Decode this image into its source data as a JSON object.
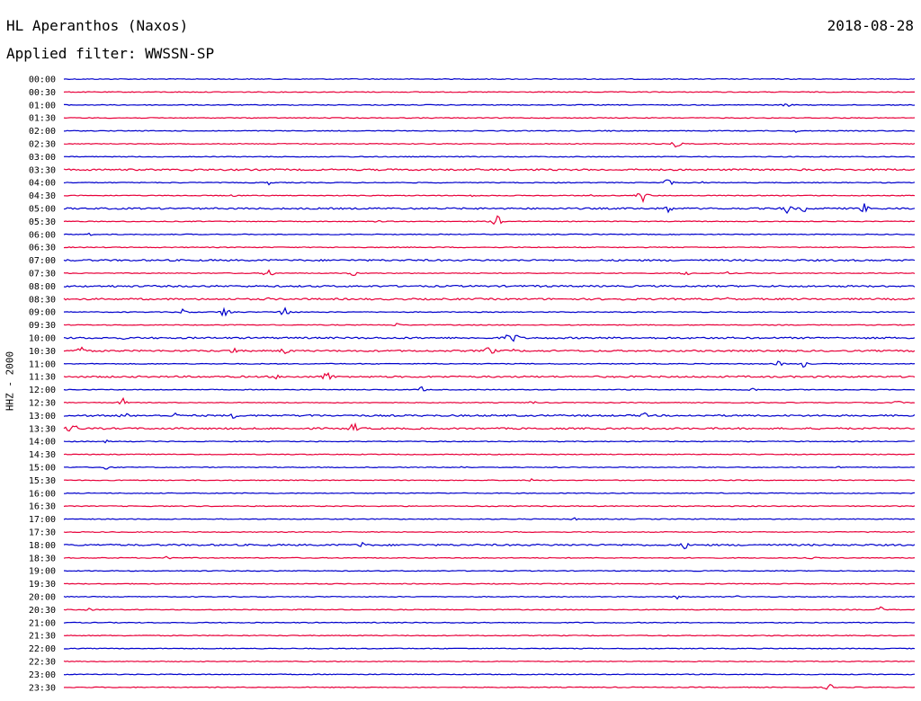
{
  "header": {
    "station": "HL Aperanthos (Naxos)",
    "date": "2018-08-28",
    "filter": "Applied filter: WWSSN-SP"
  },
  "chart_data": {
    "type": "line",
    "title": "HL Aperanthos (Naxos)",
    "ylabel": "HHZ - 2000",
    "colors": [
      "#0000cc",
      "#e8003a"
    ],
    "grid": false,
    "categories": [
      "00:00",
      "00:30",
      "01:00",
      "01:30",
      "02:00",
      "02:30",
      "03:00",
      "03:30",
      "04:00",
      "04:30",
      "05:00",
      "05:30",
      "06:00",
      "06:30",
      "07:00",
      "07:30",
      "08:00",
      "08:30",
      "09:00",
      "09:30",
      "10:00",
      "10:30",
      "11:00",
      "11:30",
      "12:00",
      "12:30",
      "13:00",
      "13:30",
      "14:00",
      "14:30",
      "15:00",
      "15:30",
      "16:00",
      "16:30",
      "17:00",
      "17:30",
      "18:00",
      "18:30",
      "19:00",
      "19:30",
      "20:00",
      "20:30",
      "21:00",
      "21:30",
      "22:00",
      "22:30",
      "23:00",
      "23:30"
    ],
    "noise": [
      1,
      1,
      1,
      1,
      1,
      1,
      1,
      2,
      1,
      1,
      2,
      1,
      1,
      1,
      2,
      1,
      2,
      2,
      1,
      1,
      2,
      2,
      1,
      2,
      1,
      1,
      2,
      2,
      1,
      1,
      1,
      1,
      1,
      1,
      1,
      1,
      2,
      1,
      1,
      1,
      1,
      1,
      1,
      1,
      1,
      1,
      1,
      1
    ],
    "events": [
      [],
      [],
      [
        [
          0.85,
          3
        ]
      ],
      [],
      [
        [
          0.64,
          1.5
        ],
        [
          0.86,
          2
        ]
      ],
      [
        [
          0.72,
          5
        ]
      ],
      [],
      [
        [
          0.15,
          2
        ],
        [
          0.97,
          2
        ]
      ],
      [
        [
          0.24,
          3
        ],
        [
          0.71,
          6
        ],
        [
          0.75,
          2
        ]
      ],
      [
        [
          0.2,
          2
        ],
        [
          0.48,
          2
        ],
        [
          0.68,
          9
        ],
        [
          0.62,
          2
        ]
      ],
      [
        [
          0.71,
          6
        ],
        [
          0.85,
          8
        ],
        [
          0.87,
          5
        ],
        [
          0.94,
          7
        ]
      ],
      [
        [
          0.37,
          2
        ],
        [
          0.51,
          9
        ]
      ],
      [
        [
          0.03,
          2
        ]
      ],
      [],
      [],
      [
        [
          0.24,
          7
        ],
        [
          0.34,
          4
        ],
        [
          0.73,
          4
        ],
        [
          0.78,
          2
        ]
      ],
      [
        [
          0.06,
          2
        ],
        [
          0.56,
          2
        ]
      ],
      [
        [
          0.24,
          2
        ],
        [
          0.66,
          3
        ],
        [
          0.78,
          2
        ]
      ],
      [
        [
          0.14,
          5
        ],
        [
          0.19,
          9
        ],
        [
          0.26,
          9
        ]
      ],
      [
        [
          0.39,
          3
        ]
      ],
      [
        [
          0.52,
          5
        ],
        [
          0.53,
          8
        ],
        [
          0.07,
          2
        ]
      ],
      [
        [
          0.02,
          7
        ],
        [
          0.2,
          6
        ],
        [
          0.26,
          6
        ],
        [
          0.5,
          9
        ],
        [
          0.53,
          3
        ]
      ],
      [
        [
          0.84,
          4
        ],
        [
          0.87,
          5
        ]
      ],
      [
        [
          0.25,
          3
        ],
        [
          0.31,
          9
        ]
      ],
      [
        [
          0.42,
          4
        ],
        [
          0.81,
          3
        ]
      ],
      [
        [
          0.07,
          5
        ],
        [
          0.55,
          3
        ],
        [
          0.98,
          3
        ]
      ],
      [
        [
          0.07,
          6
        ],
        [
          0.13,
          4
        ],
        [
          0.2,
          4
        ],
        [
          0.29,
          3
        ],
        [
          0.68,
          6
        ]
      ],
      [
        [
          0.01,
          10
        ],
        [
          0.34,
          9
        ]
      ],
      [
        [
          0.05,
          2
        ]
      ],
      [],
      [
        [
          0.05,
          4
        ],
        [
          0.47,
          3
        ],
        [
          0.91,
          2
        ]
      ],
      [
        [
          0.55,
          2
        ]
      ],
      [],
      [],
      [
        [
          0.6,
          2
        ]
      ],
      [
        [
          0.95,
          2
        ]
      ],
      [
        [
          0.35,
          5
        ],
        [
          0.73,
          5
        ],
        [
          0.67,
          2
        ]
      ],
      [
        [
          0.12,
          5
        ],
        [
          0.88,
          2
        ]
      ],
      [],
      [],
      [
        [
          0.72,
          3
        ],
        [
          0.79,
          2
        ]
      ],
      [
        [
          0.03,
          2
        ],
        [
          0.96,
          4
        ]
      ],
      [],
      [],
      [],
      [],
      [],
      [
        [
          0.9,
          5
        ]
      ]
    ]
  }
}
